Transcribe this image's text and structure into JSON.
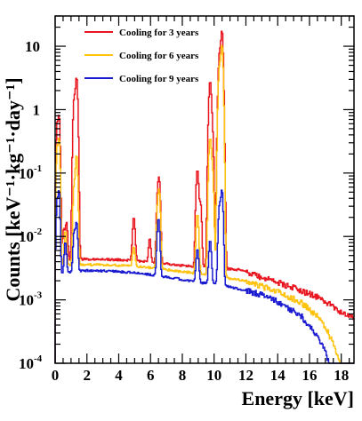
{
  "chart_data": {
    "type": "line",
    "xlabel": "Energy [keV]",
    "ylabel": "Counts [keV⁻¹·kg⁻¹·day⁻¹]",
    "xlim": [
      0,
      18.8
    ],
    "ylim": [
      0.0001,
      30
    ],
    "y_scale": "log",
    "x_ticks": [
      0,
      2,
      4,
      6,
      8,
      10,
      12,
      14,
      16,
      18
    ],
    "x_tick_labels": [
      "0",
      "2",
      "4",
      "6",
      "8",
      "10",
      "12",
      "14",
      "16",
      "18"
    ],
    "y_ticks": [
      0.0001,
      0.001,
      0.01,
      0.1,
      1,
      10
    ],
    "y_tick_labels": [
      {
        "base": "10",
        "exp": "-4"
      },
      {
        "base": "10",
        "exp": "-3"
      },
      {
        "base": "10",
        "exp": "-2"
      },
      {
        "base": "10",
        "exp": "-1"
      },
      {
        "base": "1",
        "exp": ""
      },
      {
        "base": "10",
        "exp": ""
      }
    ],
    "grid": false,
    "legend_position": "top-left",
    "series": [
      {
        "name": "Cooling for 3 years",
        "color": "#e8141e",
        "continuum": [
          [
            0.05,
            0.004
          ],
          [
            0.5,
            0.0043
          ],
          [
            2,
            0.0044
          ],
          [
            4,
            0.0043
          ],
          [
            5.5,
            0.0041
          ],
          [
            7,
            0.0037
          ],
          [
            9,
            0.0033
          ],
          [
            10.5,
            0.0031
          ],
          [
            11.5,
            0.003
          ],
          [
            12.5,
            0.0025
          ],
          [
            13.5,
            0.0021
          ],
          [
            14.5,
            0.0017
          ],
          [
            15.5,
            0.0014
          ],
          [
            16.5,
            0.0011
          ],
          [
            17.5,
            0.0008
          ],
          [
            18.2,
            0.0006
          ],
          [
            18.8,
            0.0005
          ]
        ],
        "peaks": [
          [
            0.13,
            0.6,
            0.05
          ],
          [
            0.25,
            0.8,
            0.05
          ],
          [
            0.55,
            0.009,
            0.07
          ],
          [
            0.72,
            0.012,
            0.06
          ],
          [
            1.2,
            1.5,
            0.06
          ],
          [
            1.35,
            3.2,
            0.06
          ],
          [
            4.95,
            0.016,
            0.07
          ],
          [
            5.95,
            0.0055,
            0.06
          ],
          [
            6.45,
            0.04,
            0.06
          ],
          [
            6.55,
            0.07,
            0.06
          ],
          [
            8.95,
            0.11,
            0.07
          ],
          [
            9.15,
            0.03,
            0.06
          ],
          [
            9.75,
            2.8,
            0.07
          ],
          [
            9.9,
            0.35,
            0.06
          ],
          [
            10.35,
            8,
            0.07
          ],
          [
            10.5,
            17,
            0.06
          ],
          [
            10.65,
            0.05,
            0.05
          ]
        ]
      },
      {
        "name": "Cooling for 6 years",
        "color": "#ffc20e",
        "continuum": [
          [
            0.05,
            0.0033
          ],
          [
            0.5,
            0.0035
          ],
          [
            2,
            0.0036
          ],
          [
            4,
            0.0035
          ],
          [
            5.5,
            0.0033
          ],
          [
            7,
            0.003
          ],
          [
            9,
            0.0026
          ],
          [
            10.5,
            0.0023
          ],
          [
            11.5,
            0.0021
          ],
          [
            12.5,
            0.0018
          ],
          [
            13.5,
            0.0015
          ],
          [
            14.5,
            0.0012
          ],
          [
            15.5,
            0.0009
          ],
          [
            16.5,
            0.00055
          ],
          [
            17.2,
            0.0003
          ],
          [
            17.7,
            0.00015
          ],
          [
            17.9,
            0.0001
          ]
        ],
        "peaks": [
          [
            0.13,
            0.25,
            0.05
          ],
          [
            0.25,
            0.35,
            0.05
          ],
          [
            0.65,
            0.009,
            0.06
          ],
          [
            1.2,
            0.06,
            0.06
          ],
          [
            1.35,
            0.19,
            0.06
          ],
          [
            4.95,
            0.0035,
            0.07
          ],
          [
            6.45,
            0.025,
            0.06
          ],
          [
            6.55,
            0.045,
            0.06
          ],
          [
            8.95,
            0.02,
            0.07
          ],
          [
            9.75,
            0.35,
            0.07
          ],
          [
            9.9,
            0.1,
            0.06
          ],
          [
            10.35,
            5,
            0.07
          ],
          [
            10.5,
            10,
            0.06
          ]
        ]
      },
      {
        "name": "Cooling for 9 years",
        "color": "#1a1ad0",
        "continuum": [
          [
            0.05,
            0.0024
          ],
          [
            0.5,
            0.0027
          ],
          [
            2,
            0.0029
          ],
          [
            4,
            0.0028
          ],
          [
            5.5,
            0.0026
          ],
          [
            7,
            0.0023
          ],
          [
            9,
            0.0019
          ],
          [
            10.5,
            0.0017
          ],
          [
            11.5,
            0.0015
          ],
          [
            12.5,
            0.0013
          ],
          [
            13.5,
            0.0011
          ],
          [
            14.5,
            0.0008
          ],
          [
            15.5,
            0.00055
          ],
          [
            16.3,
            0.00032
          ],
          [
            16.8,
            0.0002
          ],
          [
            17.1,
            0.00013
          ],
          [
            17.25,
            0.0001
          ]
        ],
        "peaks": [
          [
            0.13,
            0.035,
            0.05
          ],
          [
            0.25,
            0.05,
            0.05
          ],
          [
            0.65,
            0.0055,
            0.06
          ],
          [
            1.2,
            0.009,
            0.06
          ],
          [
            1.35,
            0.014,
            0.06
          ],
          [
            6.5,
            0.017,
            0.07
          ],
          [
            8.95,
            0.0045,
            0.07
          ],
          [
            9.75,
            0.007,
            0.07
          ],
          [
            10.35,
            0.03,
            0.07
          ],
          [
            10.5,
            0.05,
            0.06
          ]
        ]
      }
    ]
  }
}
